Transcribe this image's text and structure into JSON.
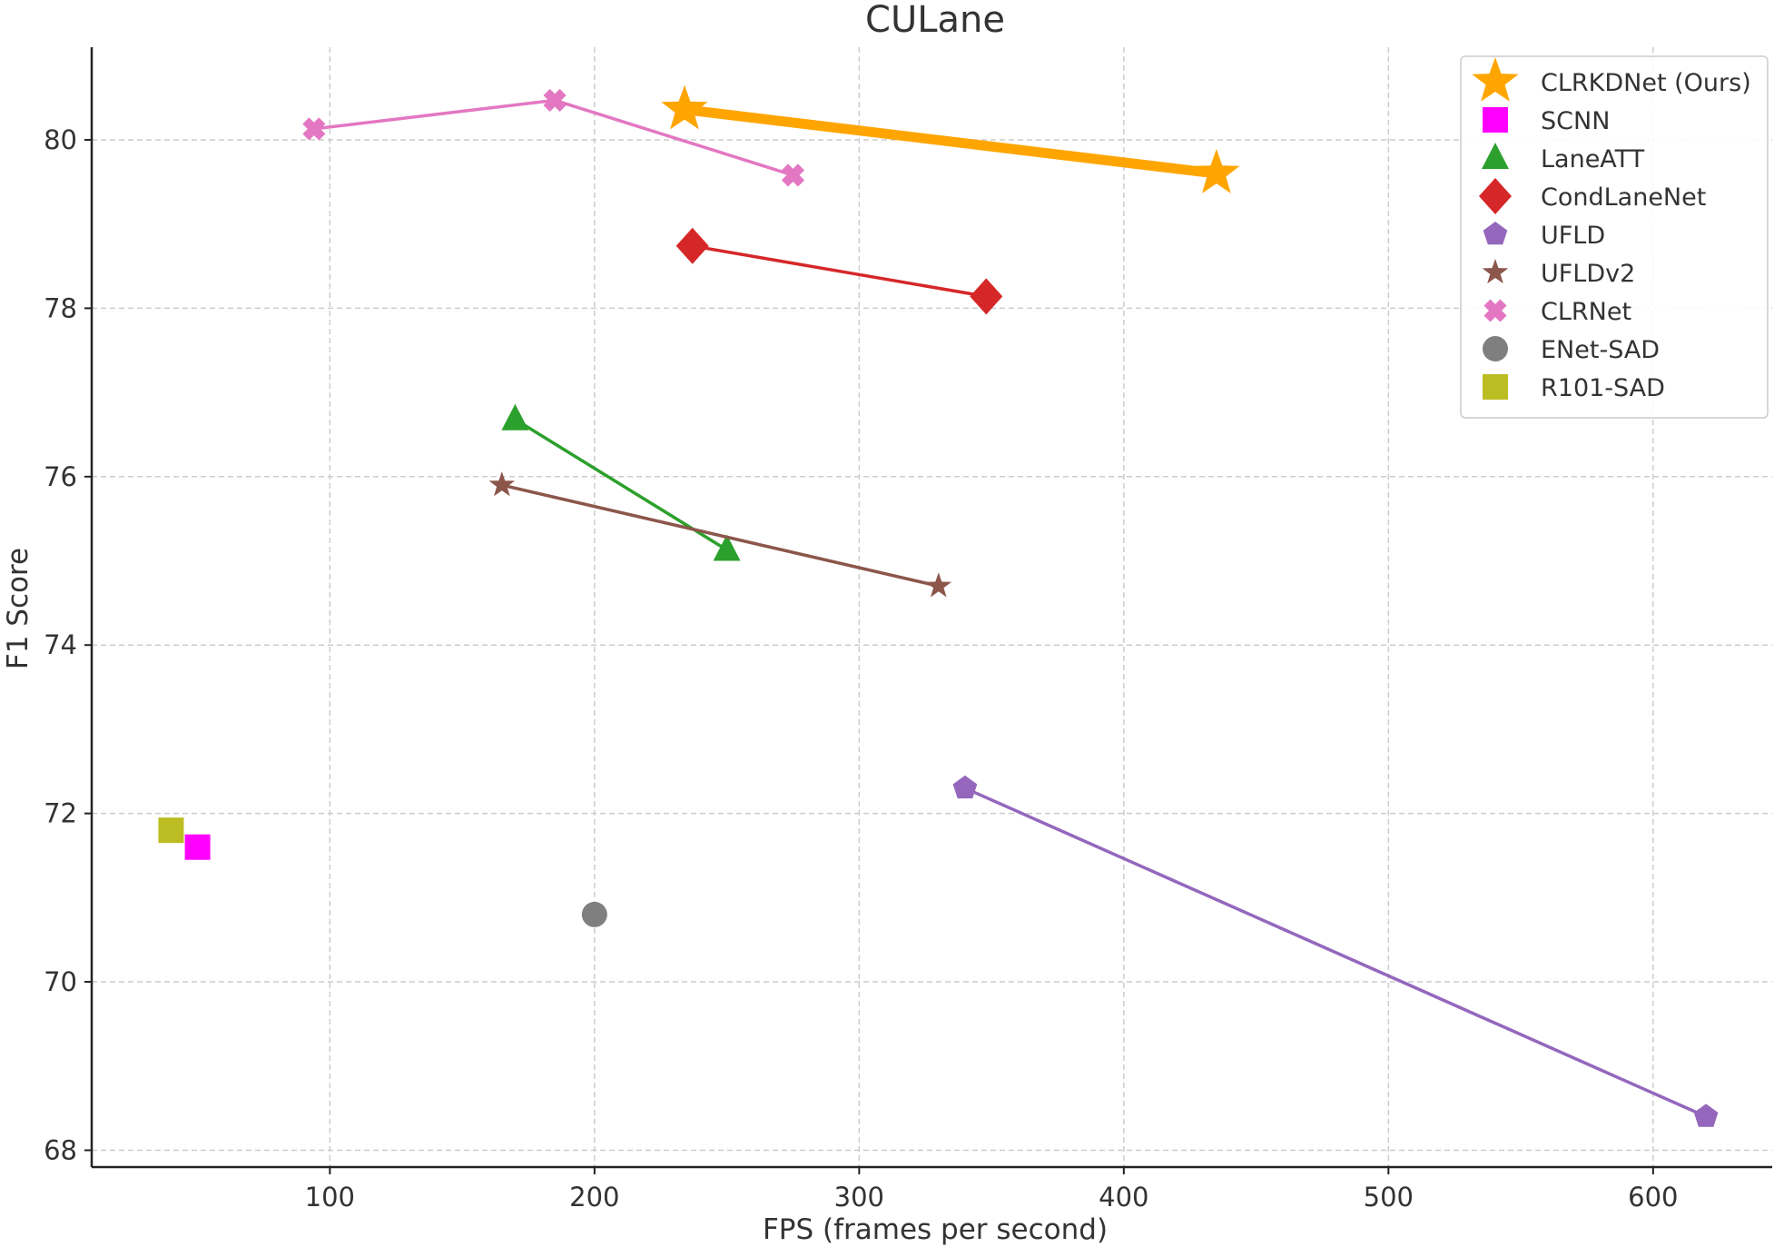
{
  "chart_data": {
    "type": "scatter",
    "title": "CULane",
    "xlabel": "FPS (frames per second)",
    "ylabel": "F1 Score",
    "xlim": [
      10,
      645
    ],
    "ylim": [
      67.8,
      81.1
    ],
    "xticks": [
      100,
      200,
      300,
      400,
      500,
      600
    ],
    "yticks": [
      68,
      70,
      72,
      74,
      76,
      78,
      80
    ],
    "grid": true,
    "legend_position": "top-right",
    "series": [
      {
        "name": "CLRKDNet (Ours)",
        "color": "#FFA500",
        "marker": "star",
        "marker_size": "large",
        "line_width": "thick",
        "points": [
          {
            "x": 234,
            "y": 80.36
          },
          {
            "x": 435,
            "y": 79.6
          }
        ]
      },
      {
        "name": "SCNN",
        "color": "#FF00FF",
        "marker": "square",
        "points": [
          {
            "x": 50,
            "y": 71.6
          }
        ]
      },
      {
        "name": "LaneATT",
        "color": "#2CA02C",
        "marker": "triangle",
        "points": [
          {
            "x": 170,
            "y": 76.68
          },
          {
            "x": 250,
            "y": 75.13
          }
        ]
      },
      {
        "name": "CondLaneNet",
        "color": "#D62728",
        "marker": "diamond",
        "points": [
          {
            "x": 237,
            "y": 78.74
          },
          {
            "x": 348,
            "y": 78.14
          }
        ]
      },
      {
        "name": "UFLD",
        "color": "#9467BD",
        "marker": "pentagon",
        "points": [
          {
            "x": 340,
            "y": 72.3
          },
          {
            "x": 620,
            "y": 68.4
          }
        ]
      },
      {
        "name": "UFLDv2",
        "color": "#8C564B",
        "marker": "star",
        "points": [
          {
            "x": 165,
            "y": 75.9
          },
          {
            "x": 330,
            "y": 74.7
          }
        ]
      },
      {
        "name": "CLRNet",
        "color": "#E377C2",
        "marker": "x-cross",
        "points": [
          {
            "x": 94,
            "y": 80.13
          },
          {
            "x": 185,
            "y": 80.47
          },
          {
            "x": 275,
            "y": 79.58
          }
        ]
      },
      {
        "name": "ENet-SAD",
        "color": "#7F7F7F",
        "marker": "circle",
        "points": [
          {
            "x": 200,
            "y": 70.8
          }
        ]
      },
      {
        "name": "R101-SAD",
        "color": "#BCBD22",
        "marker": "square",
        "points": [
          {
            "x": 40,
            "y": 71.8
          }
        ]
      }
    ]
  }
}
